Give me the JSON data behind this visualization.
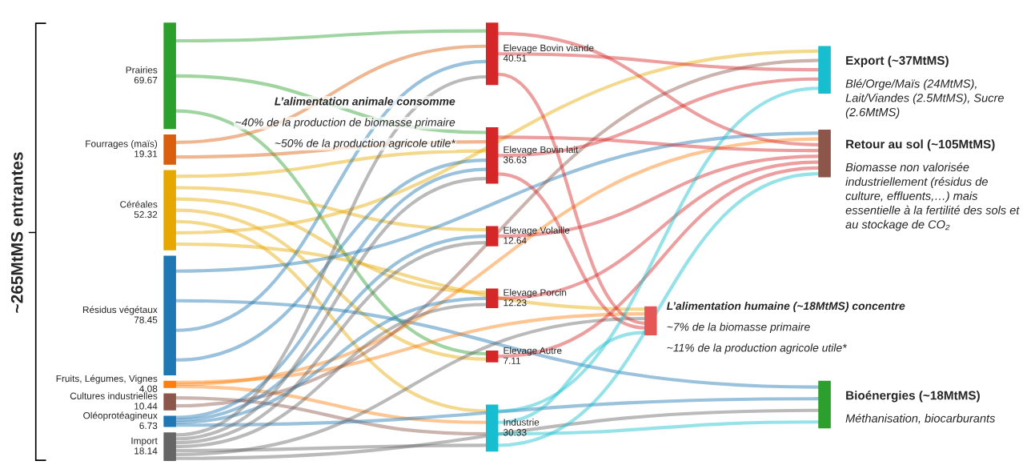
{
  "chart_data": [
    {
      "type": "other",
      "categories": [
        "Prairies",
        "Fourrages (maïs)",
        "Céréales",
        "Résidus végétaux",
        "Fruits, Légumes, Vignes",
        "Cultures industrielles",
        "Oléoprotéagineux",
        "Import"
      ],
      "values": [
        69.67,
        19.31,
        52.32,
        78.45,
        4.08,
        10.44,
        6.73,
        18.14
      ],
      "colors": [
        "#2ca02c",
        "#d95f0e",
        "#e6a800",
        "#1f77b4",
        "#ff7f0e",
        "#8c564b",
        "#1f77b4",
        "#666666"
      ],
      "data_labels": true,
      "annotations": [
        "~265MtMS entrantes"
      ]
    },
    {
      "type": "other",
      "categories": [
        "Elevage Bovin viande",
        "Elevage Bovin lait",
        "Elevage Volaille",
        "Elevage Porcin",
        "Elevage Autre",
        "Industrie"
      ],
      "values": [
        40.51,
        36.63,
        12.64,
        12.23,
        7.11,
        30.33
      ],
      "colors": [
        "#d62728",
        "#d62728",
        "#d62728",
        "#d62728",
        "#d62728",
        "#17becf"
      ],
      "data_labels": true,
      "annotations": [
        "L’alimentation animale consomme",
        "~40% de la production de biomasse primaire",
        "~50% de la production agricole utile*"
      ]
    },
    {
      "type": "other",
      "categories": [
        "L’alimentation humaine (~18MtMS) concentre"
      ],
      "colors": [
        "#e45756"
      ],
      "annotations": [
        "~7% de la biomasse primaire",
        "~11% de la production agricole utile*"
      ]
    },
    {
      "type": "other",
      "categories": [
        "Export (~37MtMS)",
        "Retour au sol (~105MtMS)",
        "Bioénergies (~18MtMS)"
      ],
      "colors": [
        "#17becf",
        "#8c564b",
        "#2ca02c"
      ],
      "annotations": [
        "Blé/Orge/Maïs (24MtMS), Lait/Viandes (2.5MtMS), Sucre (2.6MtMS)",
        "Biomasse non valorisée industriellement (résidus de culture, effluents,…) mais essentielle à la fertilité des sols et au stockage de CO₂",
        "Méthanisation, biocarburants"
      ]
    }
  ]
}
